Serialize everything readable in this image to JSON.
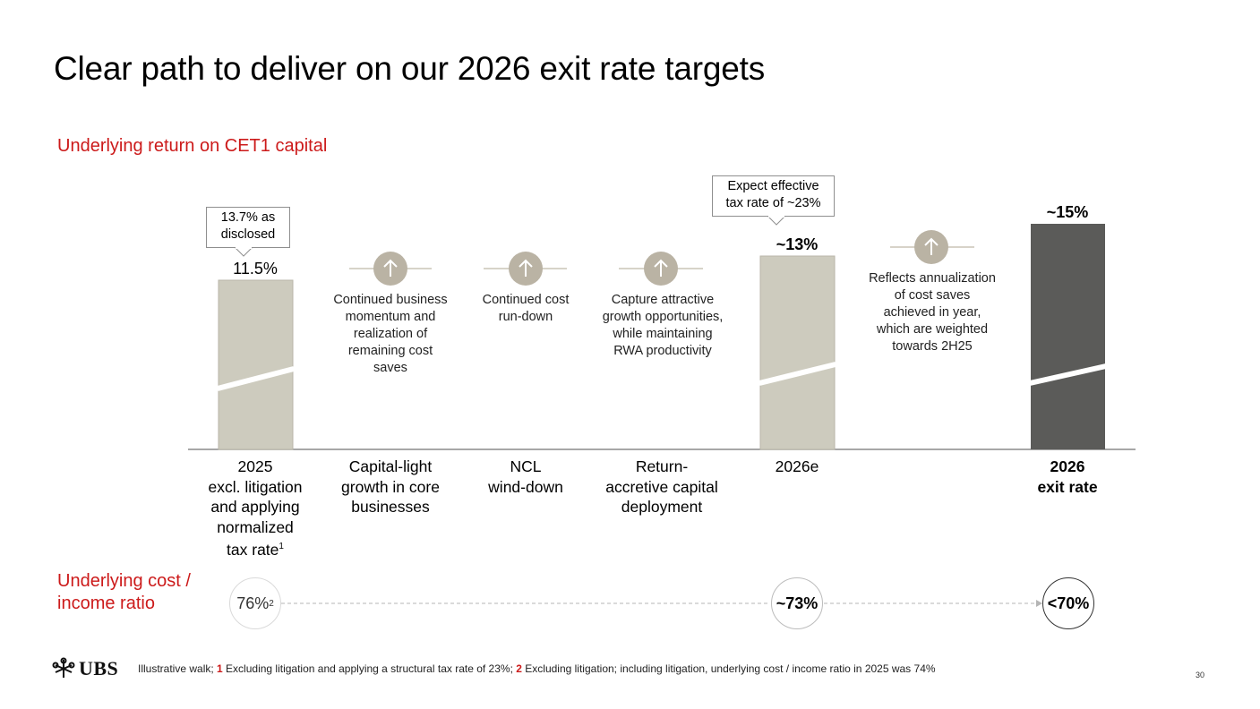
{
  "title": "Clear path to deliver on our 2026 exit rate targets",
  "subtitle": "Underlying return on CET1 capital",
  "colors": {
    "accent_red": "#cc1a1a",
    "bar_light": "#cdcbbe",
    "bar_dark": "#5b5b59",
    "arrow_circle": "#bab3a4",
    "axis": "#8a8a8a"
  },
  "chart_data": {
    "type": "bar",
    "title": "Underlying return on CET1 capital",
    "categories": [
      "2025 excl. litigation and applying normalized tax rate",
      "Capital-light growth in core businesses",
      "NCL wind-down",
      "Return-accretive capital deployment",
      "2026e",
      "",
      "2026 exit rate"
    ],
    "series": [
      {
        "name": "Underlying return on CET1 capital (%)",
        "values": [
          11.5,
          null,
          null,
          null,
          13,
          null,
          15
        ],
        "approx": [
          false,
          false,
          false,
          false,
          true,
          false,
          true
        ]
      }
    ],
    "bars": [
      {
        "category_index": 0,
        "value": 11.5,
        "label": "11.5%",
        "style": "light",
        "bold": false
      },
      {
        "category_index": 4,
        "value": 13,
        "label": "~13%",
        "style": "light",
        "bold": true
      },
      {
        "category_index": 6,
        "value": 15,
        "label": "~15%",
        "style": "dark",
        "bold": true
      }
    ],
    "increments": [
      {
        "category_index": 1,
        "direction": "up",
        "note": "Continued business momentum and realization of remaining cost saves"
      },
      {
        "category_index": 2,
        "direction": "up",
        "note": "Continued cost run-down"
      },
      {
        "category_index": 3,
        "direction": "up",
        "note": "Capture attractive growth opportunities, while maintaining RWA productivity"
      },
      {
        "category_index": 5,
        "direction": "up",
        "note": "Reflects annualization of cost saves achieved in year, which are weighted towards 2H25"
      }
    ],
    "axis_break": true,
    "ylim": [
      0,
      16
    ],
    "grid": false,
    "legend": "none"
  },
  "category_labels": {
    "c2025": [
      "2025",
      "excl. litigation",
      "and applying",
      "normalized",
      "tax rate"
    ],
    "c2025_sup": "1",
    "growth": [
      "Capital-light",
      "growth in core",
      "businesses"
    ],
    "ncl": [
      "NCL",
      "wind-down"
    ],
    "deploy": [
      "Return-",
      "accretive capital",
      "deployment"
    ],
    "e2026": [
      "2026e"
    ],
    "exit": [
      "2026",
      "exit rate"
    ]
  },
  "notes": {
    "growth": [
      "Continued business",
      "momentum and",
      "realization of",
      "remaining cost",
      "saves"
    ],
    "ncl": [
      "Continued cost",
      "run-down"
    ],
    "deploy": [
      "Capture attractive",
      "growth opportunities,",
      "while maintaining",
      "RWA productivity"
    ],
    "annual": [
      "Reflects annualization",
      "of cost saves",
      "achieved in year,",
      "which are weighted",
      "towards 2H25"
    ]
  },
  "callouts": {
    "disclosed": [
      "13.7% as",
      "disclosed"
    ],
    "tax": [
      "Expect effective",
      "tax rate of ~23%"
    ]
  },
  "cost_income": {
    "label": "Underlying cost / income ratio",
    "items": [
      {
        "text": "76%",
        "sup": "2",
        "value": 76
      },
      {
        "text": "~73%",
        "sup": "",
        "value": 73
      },
      {
        "text": "<70%",
        "sup": "",
        "value": 70
      }
    ]
  },
  "footer": {
    "intro": "Illustrative walk; ",
    "fn1_num": "1",
    "fn1_text": " Excluding litigation and applying a structural tax rate of 23%; ",
    "fn2_num": "2",
    "fn2_text": " Excluding litigation; including litigation, underlying cost / income ratio in 2025 was 74%"
  },
  "logo": {
    "text": "UBS",
    "icon": "ubs-keys-icon"
  },
  "page_number": "30"
}
